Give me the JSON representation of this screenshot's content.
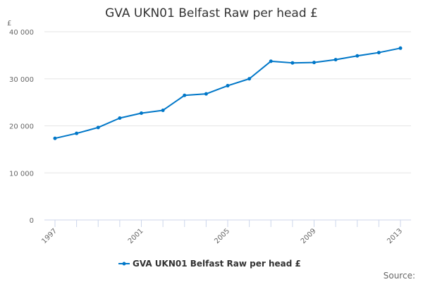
{
  "chart_data": {
    "type": "line",
    "title": "GVA UKN01 Belfast Raw per head £",
    "ylabel": "£",
    "xlabel": "",
    "x": [
      1997,
      1998,
      1999,
      2000,
      2001,
      2002,
      2003,
      2004,
      2005,
      2006,
      2007,
      2008,
      2009,
      2010,
      2011,
      2012,
      2013
    ],
    "series": [
      {
        "name": "GVA UKN01 Belfast Raw per head £",
        "color": "#0077c8",
        "values": [
          17350,
          18400,
          19650,
          21650,
          22700,
          23300,
          26480,
          26790,
          28530,
          30000,
          33730,
          33380,
          33470,
          34070,
          34870,
          35570,
          36510
        ]
      }
    ],
    "ylim": [
      0,
      40000
    ],
    "yticks": [
      0,
      10000,
      20000,
      30000,
      40000
    ],
    "ytick_labels": [
      "0",
      "10 000",
      "20 000",
      "30 000",
      "40 000"
    ],
    "xtick_labels": [
      "1997",
      "2001",
      "2005",
      "2009",
      "2013"
    ],
    "grid": true,
    "legend": "bottom-center"
  },
  "source_label": "Source:"
}
